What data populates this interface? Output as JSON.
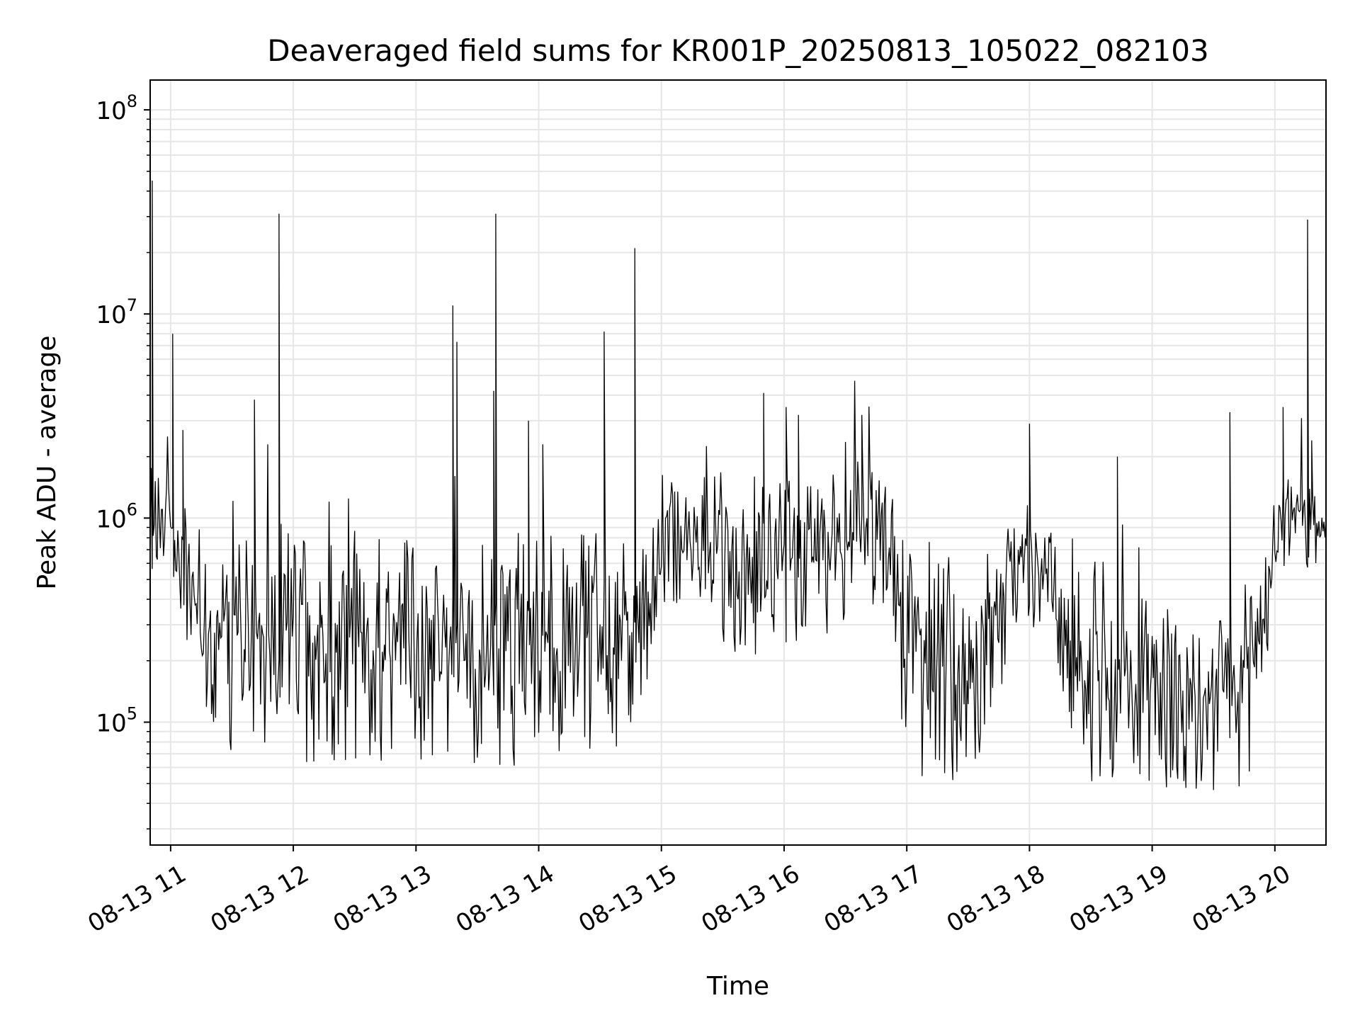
{
  "chart_data": {
    "type": "line",
    "title": "Deaveraged field sums for KR001P_20250813_105022_082103",
    "xlabel": "Time",
    "ylabel": "Peak ADU - average",
    "x_tick_labels": [
      "08-13 11",
      "08-13 12",
      "08-13 13",
      "08-13 14",
      "08-13 15",
      "08-13 16",
      "08-13 17",
      "08-13 18",
      "08-13 19",
      "08-13 20"
    ],
    "x_ticks": [
      "2025-08-13 11:00",
      "2025-08-13 12:00",
      "2025-08-13 13:00",
      "2025-08-13 14:00",
      "2025-08-13 15:00",
      "2025-08-13 16:00",
      "2025-08-13 17:00",
      "2025-08-13 18:00",
      "2025-08-13 19:00",
      "2025-08-13 20:00"
    ],
    "xlim": [
      "2025-08-13 10:50",
      "2025-08-13 20:25"
    ],
    "y_scale": "log",
    "ylim": [
      25000,
      140000000
    ],
    "y_tick_labels": [
      "10",
      "10",
      "10",
      "10"
    ],
    "y_tick_exponents": [
      "5",
      "6",
      "7",
      "8"
    ],
    "y_ticks": [
      100000,
      1000000,
      10000000,
      100000000
    ],
    "grid": true,
    "color": "#000000",
    "series": [
      {
        "sample_interval_minutes": 0.5,
        "envelope": {
          "x": [
            "2025-08-13 10:50",
            "2025-08-13 11:00",
            "2025-08-13 11:10",
            "2025-08-13 11:20",
            "2025-08-13 11:30",
            "2025-08-13 11:40",
            "2025-08-13 11:50",
            "2025-08-13 12:00",
            "2025-08-13 12:10",
            "2025-08-13 12:20",
            "2025-08-13 12:30",
            "2025-08-13 12:40",
            "2025-08-13 12:50",
            "2025-08-13 13:00",
            "2025-08-13 13:10",
            "2025-08-13 13:20",
            "2025-08-13 13:30",
            "2025-08-13 13:40",
            "2025-08-13 13:50",
            "2025-08-13 14:00",
            "2025-08-13 14:10",
            "2025-08-13 14:20",
            "2025-08-13 14:30",
            "2025-08-13 14:40",
            "2025-08-13 14:50",
            "2025-08-13 15:00",
            "2025-08-13 15:10",
            "2025-08-13 15:20",
            "2025-08-13 15:30",
            "2025-08-13 15:40",
            "2025-08-13 15:50",
            "2025-08-13 16:00",
            "2025-08-13 16:10",
            "2025-08-13 16:20",
            "2025-08-13 16:30",
            "2025-08-13 16:40",
            "2025-08-13 16:50",
            "2025-08-13 17:00",
            "2025-08-13 17:10",
            "2025-08-13 17:20",
            "2025-08-13 17:30",
            "2025-08-13 17:40",
            "2025-08-13 17:50",
            "2025-08-13 18:00",
            "2025-08-13 18:10",
            "2025-08-13 18:20",
            "2025-08-13 18:30",
            "2025-08-13 18:40",
            "2025-08-13 18:50",
            "2025-08-13 19:00",
            "2025-08-13 19:10",
            "2025-08-13 19:20",
            "2025-08-13 19:30",
            "2025-08-13 19:40",
            "2025-08-13 19:50",
            "2025-08-13 20:00",
            "2025-08-13 20:10",
            "2025-08-13 20:20",
            "2025-08-13 20:25"
          ],
          "high": [
            1800000,
            1500000,
            900000,
            900000,
            900000,
            1000000,
            1000000,
            1000000,
            900000,
            900000,
            900000,
            900000,
            900000,
            900000,
            900000,
            900000,
            900000,
            900000,
            900000,
            900000,
            900000,
            900000,
            900000,
            900000,
            900000,
            1300000,
            1500000,
            1600000,
            1700000,
            1800000,
            1800000,
            1900000,
            1800000,
            1700000,
            1800000,
            2000000,
            1700000,
            1000000,
            700000,
            700000,
            600000,
            800000,
            1000000,
            1300000,
            1300000,
            900000,
            700000,
            600000,
            500000,
            400000,
            400000,
            400000,
            400000,
            500000,
            700000,
            1500000,
            1800000,
            1600000,
            1200000
          ],
          "low": [
            500000,
            600000,
            200000,
            70000,
            60000,
            80000,
            70000,
            70000,
            60000,
            60000,
            60000,
            60000,
            60000,
            60000,
            60000,
            60000,
            60000,
            60000,
            60000,
            60000,
            60000,
            60000,
            60000,
            60000,
            60000,
            350000,
            350000,
            300000,
            250000,
            200000,
            200000,
            200000,
            250000,
            250000,
            300000,
            400000,
            300000,
            60000,
            50000,
            50000,
            50000,
            70000,
            200000,
            300000,
            60000,
            50000,
            50000,
            50000,
            45000,
            45000,
            45000,
            45000,
            45000,
            45000,
            60000,
            400000,
            700000,
            500000,
            500000
          ]
        },
        "spikes": [
          {
            "x": "2025-08-13 10:51",
            "y": 45000000
          },
          {
            "x": "2025-08-13 11:01",
            "y": 8000000
          },
          {
            "x": "2025-08-13 11:06",
            "y": 2700000
          },
          {
            "x": "2025-08-13 11:41",
            "y": 3800000
          },
          {
            "x": "2025-08-13 11:53",
            "y": 31000000
          },
          {
            "x": "2025-08-13 13:18",
            "y": 11000000
          },
          {
            "x": "2025-08-13 13:20",
            "y": 7300000
          },
          {
            "x": "2025-08-13 13:38",
            "y": 4200000
          },
          {
            "x": "2025-08-13 13:39",
            "y": 31000000
          },
          {
            "x": "2025-08-13 13:55",
            "y": 3000000
          },
          {
            "x": "2025-08-13 14:02",
            "y": 2300000
          },
          {
            "x": "2025-08-13 14:32",
            "y": 8200000
          },
          {
            "x": "2025-08-13 14:47",
            "y": 21000000
          },
          {
            "x": "2025-08-13 15:50",
            "y": 4100000
          },
          {
            "x": "2025-08-13 16:01",
            "y": 3500000
          },
          {
            "x": "2025-08-13 16:07",
            "y": 3200000
          },
          {
            "x": "2025-08-13 16:38",
            "y": 3200000
          },
          {
            "x": "2025-08-13 18:00",
            "y": 2900000
          },
          {
            "x": "2025-08-13 18:43",
            "y": 2000000
          },
          {
            "x": "2025-08-13 19:38",
            "y": 3300000
          },
          {
            "x": "2025-08-13 20:04",
            "y": 3500000
          },
          {
            "x": "2025-08-13 20:16",
            "y": 29000000
          },
          {
            "x": "2025-08-13 20:18",
            "y": 2400000
          }
        ]
      }
    ]
  }
}
